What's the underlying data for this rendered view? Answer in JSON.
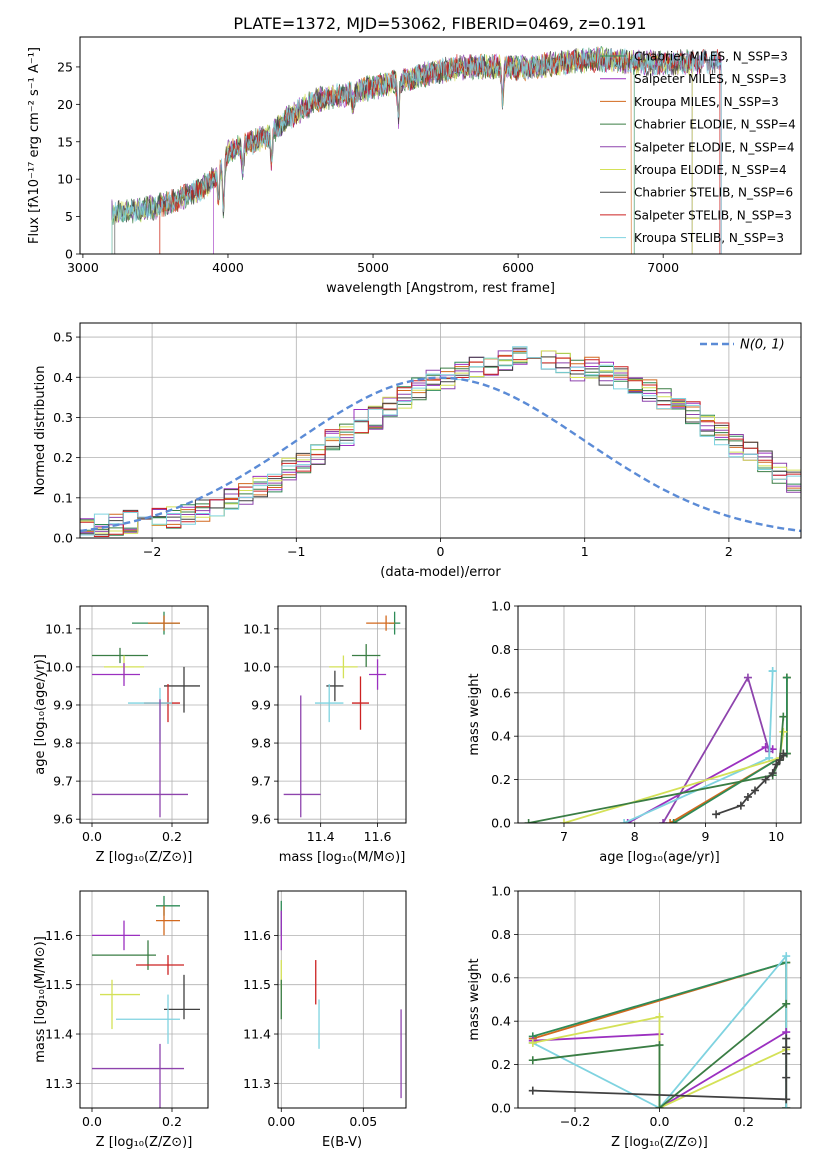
{
  "figure_title": "PLATE=1372, MJD=53062, FIBERID=0469, z=0.191",
  "model_colors": [
    "#2e8b57",
    "#9b30c0",
    "#d2691e",
    "#3a7d44",
    "#8e44ad",
    "#d4e157",
    "#404040",
    "#cc2222",
    "#7fd3e0"
  ],
  "chart_data": [
    {
      "id": "spectrum",
      "type": "line",
      "title": "PLATE=1372, MJD=53062, FIBERID=0469, z=0.191",
      "xlabel": "wavelength [Angstrom, rest frame]",
      "ylabel": "Flux [fλ10⁻¹⁷ erg cm⁻² s⁻¹ A⁻¹]",
      "xlim": [
        2980,
        7950
      ],
      "ylim": [
        0,
        29
      ],
      "xticks": [
        3000,
        4000,
        5000,
        6000,
        7000
      ],
      "yticks": [
        0,
        5,
        10,
        15,
        20,
        25
      ],
      "grid": false,
      "legend_position": "top-right",
      "legend": [
        "Chabrier MILES, N_SSP=3",
        "Salpeter MILES, N_SSP=3",
        "Kroupa MILES, N_SSP=3",
        "Chabrier ELODIE, N_SSP=4",
        "Salpeter ELODIE, N_SSP=4",
        "Kroupa ELODIE, N_SSP=4",
        "Chabrier STELIB, N_SSP=6",
        "Salpeter STELIB, N_SSP=3",
        "Kroupa STELIB, N_SSP=3"
      ],
      "continuum": {
        "x": [
          3200,
          3350,
          3500,
          3650,
          3800,
          3900,
          4000,
          4100,
          4200,
          4300,
          4400,
          4600,
          4800,
          5000,
          5200,
          5400,
          5600,
          5800,
          6000,
          6200,
          6400,
          6600,
          6800,
          7000,
          7200,
          7400
        ],
        "y": [
          5.5,
          5.7,
          6.3,
          7.3,
          8.5,
          10.0,
          13.5,
          14.5,
          15.2,
          16.0,
          18.0,
          20.5,
          21.3,
          22.3,
          23.2,
          24.2,
          25.0,
          25.0,
          24.8,
          25.3,
          25.8,
          26.0,
          25.6,
          25.5,
          25.7,
          25.6
        ]
      },
      "dips": [
        {
          "x": 3934,
          "y": 6.0
        },
        {
          "x": 3969,
          "y": 7.0
        },
        {
          "x": 4102,
          "y": 11.0
        },
        {
          "x": 4300,
          "y": 12.0
        },
        {
          "x": 4861,
          "y": 19.5
        },
        {
          "x": 5175,
          "y": 18.5
        },
        {
          "x": 5893,
          "y": 20.5
        }
      ],
      "model_ranges": [
        {
          "start": 3200,
          "end": 6800
        },
        {
          "start": 3900,
          "end": 7400
        },
        {
          "start": 3530,
          "end": 6780
        },
        {
          "start": 3200,
          "end": 7200
        },
        {
          "start": 3200,
          "end": 7200
        },
        {
          "start": 3200,
          "end": 7200
        },
        {
          "start": 3220,
          "end": 7400
        },
        {
          "start": 3530,
          "end": 7390
        },
        {
          "start": 3200,
          "end": 7400
        }
      ]
    },
    {
      "id": "residuals",
      "type": "histogram",
      "xlabel": "(data-model)/error",
      "ylabel": "Normed distribution",
      "xlim": [
        -2.5,
        2.5
      ],
      "ylim": [
        0,
        0.535
      ],
      "xticks": [
        -2,
        -1,
        0,
        1,
        2
      ],
      "yticks": [
        0.0,
        0.1,
        0.2,
        0.3,
        0.4,
        0.5
      ],
      "grid": true,
      "legend_position": "top-right",
      "reference_curve": {
        "label": "N(0, 1)",
        "mu": 0,
        "sigma": 1
      },
      "bin_width": 0.1,
      "bin_start": -2.5,
      "bar_heights": [
        0.02,
        0.03,
        0.03,
        0.04,
        0.05,
        0.05,
        0.05,
        0.06,
        0.07,
        0.08,
        0.1,
        0.11,
        0.13,
        0.14,
        0.17,
        0.19,
        0.21,
        0.24,
        0.26,
        0.29,
        0.3,
        0.33,
        0.35,
        0.37,
        0.39,
        0.4,
        0.41,
        0.42,
        0.43,
        0.44,
        0.45,
        0.46,
        0.44,
        0.43,
        0.42,
        0.42,
        0.41,
        0.4,
        0.39,
        0.37,
        0.35,
        0.33,
        0.31,
        0.28,
        0.26,
        0.23,
        0.21,
        0.19,
        0.16,
        0.14,
        0.12,
        0.1,
        0.09,
        0.07,
        0.06,
        0.05,
        0.04,
        0.04,
        0.03,
        0.03
      ]
    },
    {
      "id": "age-vs-z",
      "type": "scatter",
      "xlabel": "Z [log₁₀(Z/Z⊙)]",
      "ylabel": "age [log₁₀(age/yr)]",
      "xlim": [
        -0.03,
        0.29
      ],
      "ylim": [
        9.59,
        10.16
      ],
      "xticks": [
        0.0,
        0.2
      ],
      "yticks": [
        9.6,
        9.7,
        9.8,
        9.9,
        10.0,
        10.1
      ],
      "grid": true,
      "points": [
        {
          "x": 0.18,
          "y": 10.115,
          "xerr": [
            0.08,
            0.04
          ],
          "yerr": [
            0.03,
            0.03
          ],
          "model": 0
        },
        {
          "x": 0.18,
          "y": 10.115,
          "xerr": [
            0.04,
            0.04
          ],
          "yerr": [
            0.02,
            0.02
          ],
          "model": 2
        },
        {
          "x": 0.07,
          "y": 10.03,
          "xerr": [
            0.07,
            0.07
          ],
          "yerr": [
            0.02,
            0.02
          ],
          "model": 3
        },
        {
          "x": 0.08,
          "y": 10.0,
          "xerr": [
            0.05,
            0.05
          ],
          "yerr": [
            0.03,
            0.03
          ],
          "model": 5
        },
        {
          "x": 0.08,
          "y": 9.98,
          "xerr": [
            0.08,
            0.04
          ],
          "yerr": [
            0.03,
            0.03
          ],
          "model": 1
        },
        {
          "x": 0.23,
          "y": 9.95,
          "xerr": [
            0.05,
            0.04
          ],
          "yerr": [
            0.07,
            0.05
          ],
          "model": 6
        },
        {
          "x": 0.19,
          "y": 9.905,
          "xerr": [
            0.06,
            0.03
          ],
          "yerr": [
            0.05,
            0.05
          ],
          "model": 7
        },
        {
          "x": 0.17,
          "y": 9.905,
          "xerr": [
            0.08,
            0.03
          ],
          "yerr": [
            0.1,
            0.04
          ],
          "model": 8
        },
        {
          "x": 0.17,
          "y": 9.665,
          "xerr": [
            0.17,
            0.07
          ],
          "yerr": [
            0.06,
            0.25
          ],
          "model": 4
        }
      ]
    },
    {
      "id": "age-vs-mass",
      "type": "scatter",
      "xlabel": "mass [log₁₀(M/M⊙)]",
      "ylabel": "",
      "xlim": [
        11.25,
        11.7
      ],
      "ylim": [
        9.59,
        10.16
      ],
      "xticks": [
        11.4,
        11.6
      ],
      "yticks": [
        9.6,
        9.7,
        9.8,
        9.9,
        10.0,
        10.1
      ],
      "grid": true,
      "points": [
        {
          "x": 11.66,
          "y": 10.115,
          "xerr": [
            0.02,
            0.02
          ],
          "yerr": [
            0.03,
            0.03
          ],
          "model": 0
        },
        {
          "x": 11.63,
          "y": 10.115,
          "xerr": [
            0.07,
            0.03
          ],
          "yerr": [
            0.02,
            0.02
          ],
          "model": 2
        },
        {
          "x": 11.56,
          "y": 10.03,
          "xerr": [
            0.05,
            0.05
          ],
          "yerr": [
            0.03,
            0.03
          ],
          "model": 3
        },
        {
          "x": 11.48,
          "y": 10.0,
          "xerr": [
            0.05,
            0.05
          ],
          "yerr": [
            0.03,
            0.03
          ],
          "model": 5
        },
        {
          "x": 11.6,
          "y": 9.98,
          "xerr": [
            0.03,
            0.03
          ],
          "yerr": [
            0.04,
            0.04
          ],
          "model": 1
        },
        {
          "x": 11.45,
          "y": 9.95,
          "xerr": [
            0.03,
            0.03
          ],
          "yerr": [
            0.04,
            0.04
          ],
          "model": 6
        },
        {
          "x": 11.54,
          "y": 9.905,
          "xerr": [
            0.03,
            0.03
          ],
          "yerr": [
            0.07,
            0.07
          ],
          "model": 7
        },
        {
          "x": 11.43,
          "y": 9.905,
          "xerr": [
            0.05,
            0.05
          ],
          "yerr": [
            0.05,
            0.05
          ],
          "model": 8
        },
        {
          "x": 11.33,
          "y": 9.665,
          "xerr": [
            0.06,
            0.07
          ],
          "yerr": [
            0.06,
            0.26
          ],
          "model": 4
        }
      ]
    },
    {
      "id": "mass-weight-vs-age",
      "type": "line",
      "xlabel": "age [log₁₀(age/yr)]",
      "ylabel": "mass weight",
      "xlim": [
        6.35,
        10.35
      ],
      "ylim": [
        0,
        1
      ],
      "xticks": [
        7,
        8,
        9,
        10
      ],
      "yticks": [
        0.0,
        0.2,
        0.4,
        0.6,
        0.8,
        1.0
      ],
      "grid": true,
      "series": [
        {
          "model": 2,
          "x": [
            8.5,
            10.15,
            10.15
          ],
          "y": [
            0.0,
            0.32,
            0.67
          ]
        },
        {
          "model": 0,
          "x": [
            8.55,
            10.15,
            10.15
          ],
          "y": [
            0.0,
            0.32,
            0.67
          ]
        },
        {
          "model": 1,
          "x": [
            7.9,
            9.85,
            9.95
          ],
          "y": [
            0.0,
            0.35,
            0.34
          ]
        },
        {
          "model": 4,
          "x": [
            8.4,
            9.6,
            9.9
          ],
          "y": [
            0.0,
            0.67,
            0.33
          ]
        },
        {
          "model": 8,
          "x": [
            7.85,
            9.9,
            9.95,
            9.95
          ],
          "y": [
            0.0,
            0.3,
            0.7,
            0.7
          ]
        },
        {
          "model": 5,
          "x": [
            7.0,
            10.05,
            10.1
          ],
          "y": [
            0.0,
            0.3,
            0.42
          ]
        },
        {
          "model": 3,
          "x": [
            6.5,
            9.95,
            10.05,
            10.1
          ],
          "y": [
            0.0,
            0.22,
            0.29,
            0.49
          ]
        },
        {
          "model": 6,
          "x": [
            9.15,
            9.5,
            9.6,
            9.7,
            9.85,
            9.95,
            10.0,
            10.05,
            10.1,
            10.1
          ],
          "y": [
            0.04,
            0.08,
            0.12,
            0.15,
            0.2,
            0.23,
            0.27,
            0.29,
            0.31,
            0.32
          ]
        }
      ]
    },
    {
      "id": "mass-vs-z",
      "type": "scatter",
      "xlabel": "Z [log₁₀(Z/Z⊙)]",
      "ylabel": "mass [log₁₀(M/M⊙)]",
      "xlim": [
        -0.03,
        0.29
      ],
      "ylim": [
        11.25,
        11.69
      ],
      "xticks": [
        0.0,
        0.2
      ],
      "yticks": [
        11.3,
        11.4,
        11.5,
        11.6
      ],
      "grid": true,
      "points": [
        {
          "x": 0.18,
          "y": 11.66,
          "xerr": [
            0.02,
            0.04
          ],
          "yerr": [
            0.02,
            0.02
          ],
          "model": 0
        },
        {
          "x": 0.18,
          "y": 11.63,
          "xerr": [
            0.02,
            0.04
          ],
          "yerr": [
            0.03,
            0.03
          ],
          "model": 2
        },
        {
          "x": 0.08,
          "y": 11.6,
          "xerr": [
            0.08,
            0.04
          ],
          "yerr": [
            0.03,
            0.03
          ],
          "model": 1
        },
        {
          "x": 0.14,
          "y": 11.56,
          "xerr": [
            0.14,
            0.02
          ],
          "yerr": [
            0.03,
            0.03
          ],
          "model": 3
        },
        {
          "x": 0.19,
          "y": 11.54,
          "xerr": [
            0.08,
            0.04
          ],
          "yerr": [
            0.02,
            0.02
          ],
          "model": 7
        },
        {
          "x": 0.05,
          "y": 11.48,
          "xerr": [
            0.03,
            0.07
          ],
          "yerr": [
            0.07,
            0.03
          ],
          "model": 5
        },
        {
          "x": 0.23,
          "y": 11.45,
          "xerr": [
            0.05,
            0.04
          ],
          "yerr": [
            0.02,
            0.07
          ],
          "model": 6
        },
        {
          "x": 0.19,
          "y": 11.43,
          "xerr": [
            0.13,
            0.03
          ],
          "yerr": [
            0.05,
            0.05
          ],
          "model": 8
        },
        {
          "x": 0.17,
          "y": 11.33,
          "xerr": [
            0.17,
            0.06
          ],
          "yerr": [
            0.08,
            0.05
          ],
          "model": 4
        }
      ]
    },
    {
      "id": "mass-vs-ebv",
      "type": "scatter",
      "xlabel": "E(B-V)",
      "ylabel": "",
      "xlim": [
        -0.002,
        0.076
      ],
      "ylim": [
        11.25,
        11.69
      ],
      "xticks": [
        0.0,
        0.05
      ],
      "yticks": [
        11.3,
        11.4,
        11.5,
        11.6
      ],
      "grid": true,
      "points": [
        {
          "x": 0.0,
          "y": 11.64,
          "xerr": [
            0,
            0
          ],
          "yerr": [
            0.04,
            0.03
          ],
          "model": 0
        },
        {
          "x": 0.0,
          "y": 11.61,
          "xerr": [
            0,
            0
          ],
          "yerr": [
            0.04,
            0.04
          ],
          "model": 1
        },
        {
          "x": 0.0,
          "y": 11.52,
          "xerr": [
            0,
            0
          ],
          "yerr": [
            0.03,
            0.03
          ],
          "model": 5
        },
        {
          "x": 0.0,
          "y": 11.47,
          "xerr": [
            0,
            0
          ],
          "yerr": [
            0.04,
            0.04
          ],
          "model": 3
        },
        {
          "x": 0.021,
          "y": 11.51,
          "xerr": [
            0,
            0
          ],
          "yerr": [
            0.05,
            0.04
          ],
          "model": 7
        },
        {
          "x": 0.023,
          "y": 11.42,
          "xerr": [
            0,
            0
          ],
          "yerr": [
            0.05,
            0.05
          ],
          "model": 8
        },
        {
          "x": 0.073,
          "y": 11.36,
          "xerr": [
            0,
            0
          ],
          "yerr": [
            0.09,
            0.09
          ],
          "model": 4
        }
      ]
    },
    {
      "id": "mass-weight-vs-z",
      "type": "line",
      "xlabel": "Z [log₁₀(Z/Z⊙)]",
      "ylabel": "mass weight",
      "xlim": [
        -0.335,
        0.335
      ],
      "ylim": [
        0,
        1
      ],
      "xticks": [
        -0.2,
        0.0,
        0.2
      ],
      "yticks": [
        0.0,
        0.2,
        0.4,
        0.6,
        0.8,
        1.0
      ],
      "grid": true,
      "series": [
        {
          "model": 2,
          "x": [
            -0.3,
            0.3,
            0.3
          ],
          "y": [
            0.32,
            0.67,
            0.0
          ]
        },
        {
          "model": 0,
          "x": [
            -0.3,
            0.3,
            0.3
          ],
          "y": [
            0.33,
            0.67,
            0.0
          ]
        },
        {
          "model": 8,
          "x": [
            -0.3,
            0.0,
            0.3,
            0.3
          ],
          "y": [
            0.3,
            0.0,
            0.7,
            0.0
          ]
        },
        {
          "model": 1,
          "x": [
            -0.3,
            0.0,
            0.0,
            0.3
          ],
          "y": [
            0.31,
            0.34,
            0.0,
            0.35
          ]
        },
        {
          "model": 5,
          "x": [
            -0.3,
            0.0,
            0.0,
            0.3
          ],
          "y": [
            0.3,
            0.42,
            0.0,
            0.27
          ]
        },
        {
          "model": 3,
          "x": [
            -0.3,
            0.0,
            0.0,
            0.3
          ],
          "y": [
            0.22,
            0.29,
            0.0,
            0.48
          ]
        },
        {
          "model": 6,
          "x": [
            -0.3,
            0.3,
            0.3,
            0.3,
            0.3,
            0.3
          ],
          "y": [
            0.08,
            0.04,
            0.14,
            0.25,
            0.28,
            0.32
          ]
        }
      ]
    }
  ]
}
